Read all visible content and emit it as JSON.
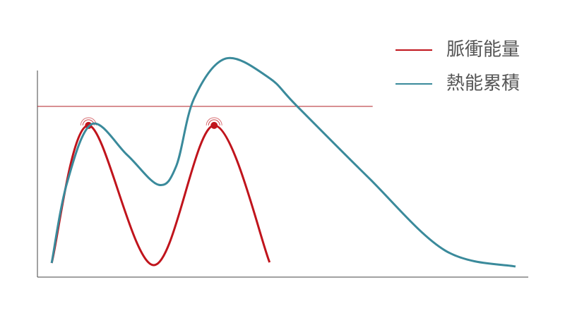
{
  "chart_data": {
    "type": "line",
    "xlim": [
      0,
      100
    ],
    "ylim": [
      0,
      100
    ],
    "series": [
      {
        "name": "脈衝能量",
        "color": "#c0141c",
        "x": [
          2.9,
          10.4,
          23.7,
          36.0,
          47.3
        ],
        "values": [
          6.0,
          64.6,
          5.1,
          64.6,
          6.3
        ],
        "highlight": [
          1,
          3
        ]
      },
      {
        "name": "熱能累積",
        "color": "#3a8a9b",
        "x": [
          2.9,
          6.0,
          11.1,
          18.3,
          24.7,
          28.3,
          31.9,
          38.4,
          47.1,
          52.8,
          67.2,
          83.0,
          97.4
        ],
        "values": [
          6.0,
          39.9,
          65.2,
          52.0,
          39.3,
          47.4,
          76.0,
          93.1,
          85.0,
          73.0,
          42.9,
          11.4,
          4.5
        ]
      }
    ],
    "threshold": {
      "value": 72.7,
      "x_end": 68.3,
      "color": "#b02028"
    },
    "legend": "top-right"
  }
}
